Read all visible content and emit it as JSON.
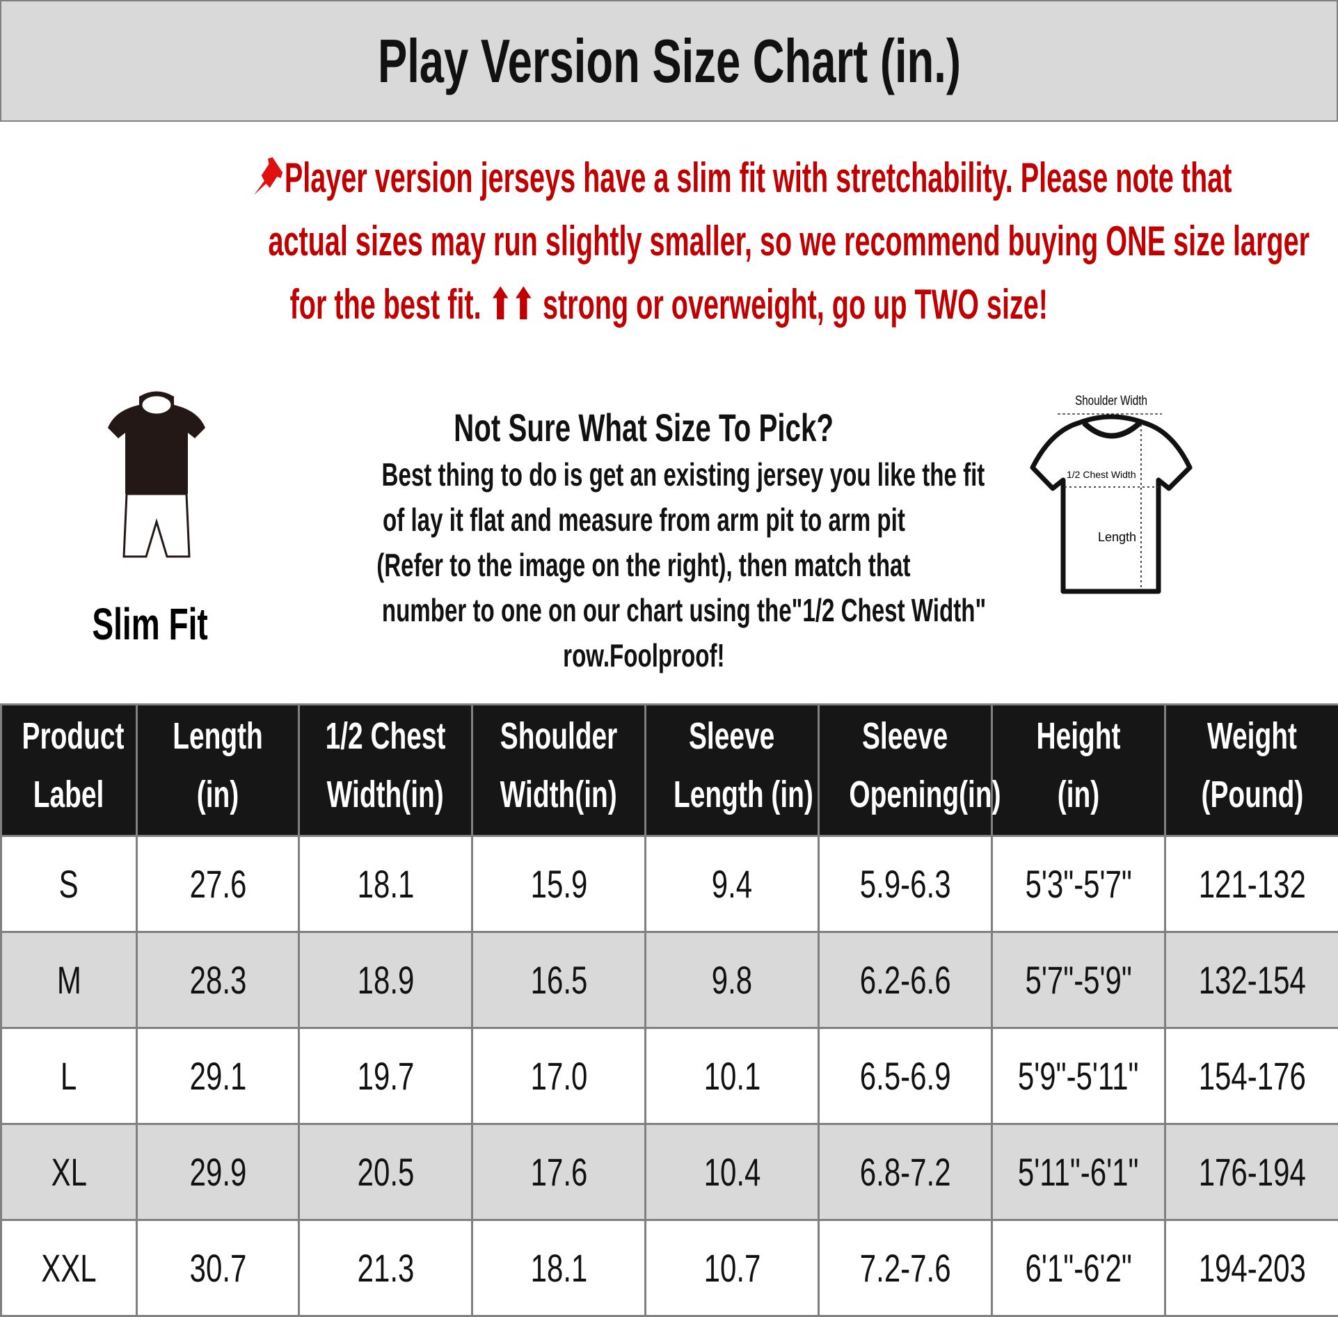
{
  "title": "Play Version Size Chart (in.)",
  "notice": {
    "icon": "pushpin-icon",
    "color": "#c00000",
    "lines": [
      "Player version jerseys have a slim fit with stretchability. Please note that",
      "actual sizes may run slightly smaller, so we recommend buying ONE size larger",
      "for the best fit. ⬆⬆ strong or overweight, go up TWO size!"
    ]
  },
  "slim_fit": {
    "label": "Slim Fit"
  },
  "help": {
    "heading": "Not Sure What Size To Pick?",
    "lines": [
      "Best thing to do is get an existing jersey you like the fit",
      "of lay it flat and measure from arm pit to arm pit",
      "(Refer to the image on the right), then match that",
      "number to one on our chart using the\"1/2 Chest Width\"",
      "row.Foolproof!"
    ]
  },
  "diagram": {
    "shoulder": "Shoulder Width",
    "chest": "1/2 Chest Width",
    "length": "Length"
  },
  "table": {
    "headers": [
      [
        "Product",
        "Label"
      ],
      [
        "Length",
        "(in)"
      ],
      [
        "1/2 Chest",
        "Width(in)"
      ],
      [
        "Shoulder",
        "Width(in)"
      ],
      [
        "Sleeve",
        "Length (in)"
      ],
      [
        "Sleeve",
        "Opening(in)"
      ],
      [
        "Height",
        "(in)"
      ],
      [
        "Weight",
        "(Pound)"
      ]
    ],
    "rows": [
      [
        "S",
        "27.6",
        "18.1",
        "15.9",
        "9.4",
        "5.9-6.3",
        "5'3\"-5'7\"",
        "121-132"
      ],
      [
        "M",
        "28.3",
        "18.9",
        "16.5",
        "9.8",
        "6.2-6.6",
        "5'7\"-5'9\"",
        "132-154"
      ],
      [
        "L",
        "29.1",
        "19.7",
        "17.0",
        "10.1",
        "6.5-6.9",
        "5'9\"-5'11\"",
        "154-176"
      ],
      [
        "XL",
        "29.9",
        "20.5",
        "17.6",
        "10.4",
        "6.8-7.2",
        "5'11\"-6'1\"",
        "176-194"
      ],
      [
        "XXL",
        "30.7",
        "21.3",
        "18.1",
        "10.7",
        "7.2-7.6",
        "6'1\"-6'2\"",
        "194-203"
      ]
    ]
  }
}
